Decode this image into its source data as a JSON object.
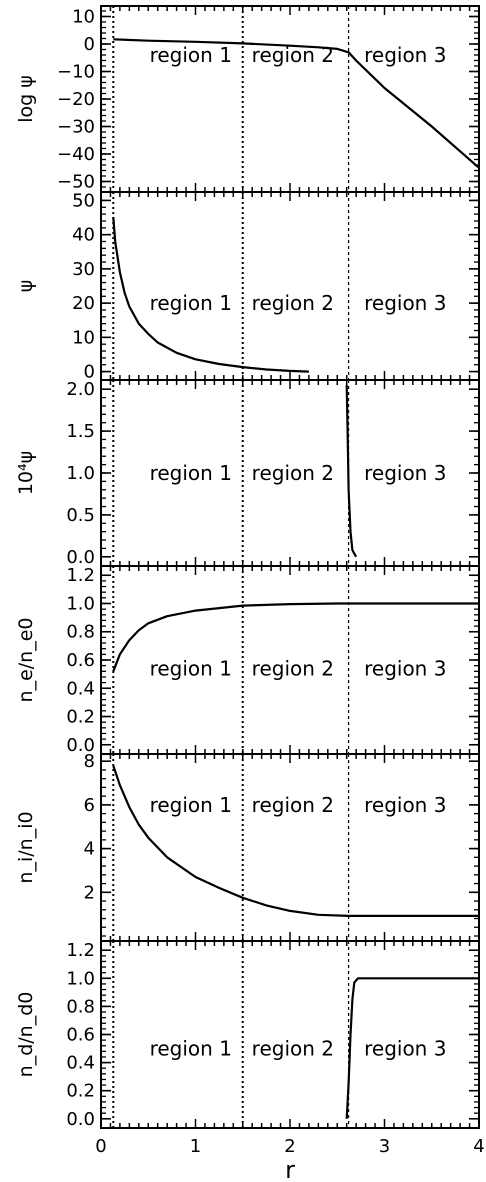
{
  "chart_data": [
    {
      "type": "line",
      "ylabel": "log ψ",
      "ylim": [
        -52,
        12
      ],
      "yticks": [
        10,
        0,
        -10,
        -20,
        -30,
        -40,
        -50
      ],
      "ytick_labels": [
        "10",
        "0",
        "−10",
        "−20",
        "−30",
        "−40",
        "−50"
      ],
      "xlim": [
        0,
        4
      ],
      "region_boundaries": [
        0.13,
        1.5,
        2.62
      ],
      "region_labels": [
        {
          "text": "region 1",
          "x": 0.95
        },
        {
          "text": "region 2",
          "x": 2.03
        },
        {
          "text": "region 3",
          "x": 3.22
        }
      ],
      "region_label_y": -4,
      "series": [
        {
          "x": [
            0.13,
            0.5,
            1.0,
            1.5,
            2.0,
            2.3,
            2.5,
            2.62,
            2.7,
            3.0,
            3.5,
            4.0
          ],
          "y": [
            1.7,
            1.2,
            0.8,
            0.2,
            -0.6,
            -1.2,
            -1.8,
            -3.0,
            -6.0,
            -16.0,
            -30.0,
            -45.0
          ]
        }
      ]
    },
    {
      "type": "line",
      "ylabel": "ψ",
      "ylim": [
        -1,
        51
      ],
      "yticks": [
        0,
        10,
        20,
        30,
        40,
        50
      ],
      "ytick_labels": [
        "0",
        "10",
        "20",
        "30",
        "40",
        "50"
      ],
      "xlim": [
        0,
        4
      ],
      "region_boundaries": [
        0.13,
        1.5,
        2.62
      ],
      "region_labels": [
        {
          "text": "region 1",
          "x": 0.95
        },
        {
          "text": "region 2",
          "x": 2.03
        },
        {
          "text": "region 3",
          "x": 3.22
        }
      ],
      "region_label_y": 20,
      "series": [
        {
          "x": [
            0.13,
            0.15,
            0.2,
            0.25,
            0.3,
            0.4,
            0.5,
            0.6,
            0.8,
            1.0,
            1.25,
            1.5,
            1.75,
            2.0,
            2.2
          ],
          "y": [
            45,
            38,
            29,
            23,
            19,
            14,
            11,
            8.5,
            5.5,
            3.6,
            2.2,
            1.3,
            0.6,
            0.2,
            0
          ]
        }
      ]
    },
    {
      "type": "line",
      "ylabel": "10⁴ψ",
      "ylim": [
        -0.05,
        2.05
      ],
      "yticks": [
        0.0,
        0.5,
        1.0,
        1.5,
        2.0
      ],
      "ytick_labels": [
        "0.0",
        "0.5",
        "1.0",
        "1.5",
        "2.0"
      ],
      "xlim": [
        0,
        4
      ],
      "region_boundaries": [
        0.13,
        1.5,
        2.62
      ],
      "region_labels": [
        {
          "text": "region 1",
          "x": 0.95
        },
        {
          "text": "region 2",
          "x": 2.03
        },
        {
          "text": "region 3",
          "x": 3.22
        }
      ],
      "region_label_y": 1.0,
      "series": [
        {
          "x": [
            2.6,
            2.61,
            2.62,
            2.64,
            2.66,
            2.7
          ],
          "y": [
            2.05,
            1.5,
            0.8,
            0.3,
            0.08,
            0
          ]
        }
      ]
    },
    {
      "type": "line",
      "ylabel": "n_e/n_e0",
      "ylim": [
        -0.03,
        1.23
      ],
      "yticks": [
        0.0,
        0.2,
        0.4,
        0.6,
        0.8,
        1.0,
        1.2
      ],
      "ytick_labels": [
        "0.0",
        "0.2",
        "0.4",
        "0.6",
        "0.8",
        "1.0",
        "1.2"
      ],
      "xlim": [
        0,
        4
      ],
      "region_boundaries": [
        0.13,
        1.5,
        2.62
      ],
      "region_labels": [
        {
          "text": "region 1",
          "x": 0.95
        },
        {
          "text": "region 2",
          "x": 2.03
        },
        {
          "text": "region 3",
          "x": 3.22
        }
      ],
      "region_label_y": 0.54,
      "series": [
        {
          "x": [
            0.13,
            0.2,
            0.3,
            0.4,
            0.5,
            0.7,
            1.0,
            1.5,
            2.0,
            2.5,
            3.0,
            4.0
          ],
          "y": [
            0.52,
            0.64,
            0.74,
            0.81,
            0.86,
            0.91,
            0.95,
            0.985,
            0.996,
            1.0,
            1.0,
            1.0
          ]
        }
      ]
    },
    {
      "type": "line",
      "ylabel": "n_i/n_i0",
      "ylim": [
        0,
        8.1
      ],
      "yticks": [
        2,
        4,
        6,
        8
      ],
      "ytick_labels": [
        "2",
        "4",
        "6",
        "8"
      ],
      "xlim": [
        0,
        4
      ],
      "region_boundaries": [
        0.13,
        1.5,
        2.62
      ],
      "region_labels": [
        {
          "text": "region 1",
          "x": 0.95
        },
        {
          "text": "region 2",
          "x": 2.03
        },
        {
          "text": "region 3",
          "x": 3.22
        }
      ],
      "region_label_y": 6.0,
      "series": [
        {
          "x": [
            0.13,
            0.2,
            0.3,
            0.4,
            0.5,
            0.7,
            1.0,
            1.25,
            1.5,
            1.75,
            2.0,
            2.3,
            2.62,
            3.0,
            4.0
          ],
          "y": [
            7.8,
            6.9,
            5.9,
            5.1,
            4.5,
            3.6,
            2.7,
            2.2,
            1.75,
            1.4,
            1.15,
            0.97,
            0.92,
            0.92,
            0.92
          ]
        }
      ]
    },
    {
      "type": "line",
      "ylabel": "n_d/n_d0",
      "ylim": [
        -0.03,
        1.23
      ],
      "yticks": [
        0.0,
        0.2,
        0.4,
        0.6,
        0.8,
        1.0,
        1.2
      ],
      "ytick_labels": [
        "0.0",
        "0.2",
        "0.4",
        "0.6",
        "0.8",
        "1.0",
        "1.2"
      ],
      "xlim": [
        0,
        4
      ],
      "xticks": [
        0,
        1,
        2,
        3,
        4
      ],
      "xtick_labels": [
        "0",
        "1",
        "2",
        "3",
        "4"
      ],
      "xlabel": "r",
      "region_boundaries": [
        0.13,
        1.5,
        2.62
      ],
      "region_labels": [
        {
          "text": "region 1",
          "x": 0.95
        },
        {
          "text": "region 2",
          "x": 2.03
        },
        {
          "text": "region 3",
          "x": 3.22
        }
      ],
      "region_label_y": 0.5,
      "series": [
        {
          "x": [
            2.6,
            2.62,
            2.64,
            2.66,
            2.68,
            2.72,
            2.8,
            3.0,
            4.0
          ],
          "y": [
            0.0,
            0.25,
            0.6,
            0.85,
            0.97,
            1.0,
            1.0,
            1.0,
            1.0
          ]
        }
      ]
    }
  ]
}
